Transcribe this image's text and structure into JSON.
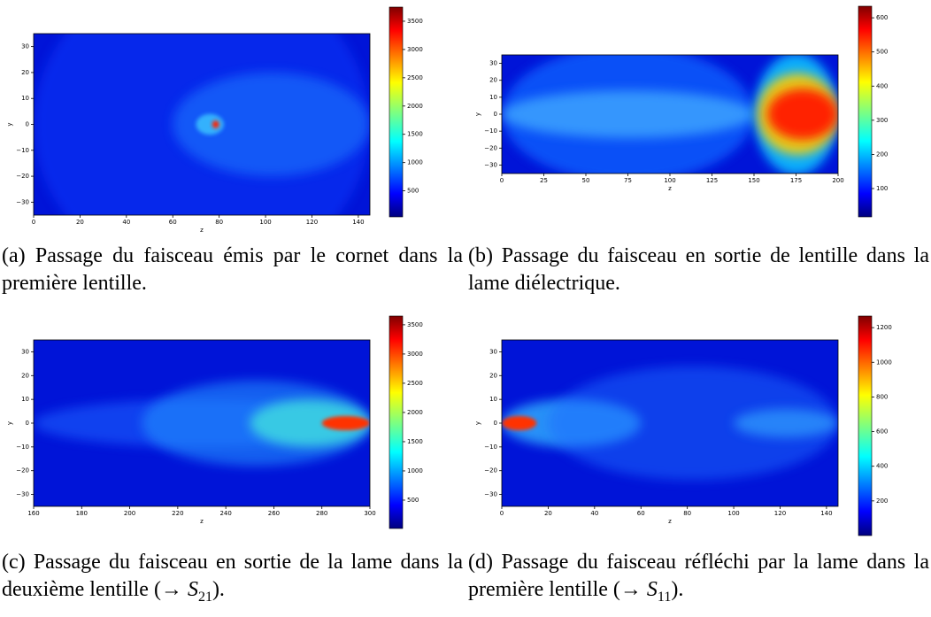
{
  "chart_data": [
    {
      "type": "heatmap",
      "xlabel": "z",
      "ylabel": "y",
      "xlim": [
        0,
        145
      ],
      "xticks": [
        0,
        20,
        40,
        60,
        80,
        100,
        120,
        140
      ],
      "ylim": [
        -35,
        35
      ],
      "yticks": [
        {
          "value": -30,
          "label": "−30"
        },
        {
          "value": -20,
          "label": "−20"
        },
        {
          "value": -10,
          "label": "−10"
        },
        0,
        10,
        20,
        30
      ],
      "colorbar": {
        "lim": [
          40,
          3750
        ],
        "ticks": [
          500,
          1000,
          1500,
          2000,
          2500,
          3000,
          3500
        ]
      },
      "caption": "(a) Passage du faisceau émis par le cornet dans la première lentille."
    },
    {
      "type": "heatmap",
      "xlabel": "z",
      "ylabel": "y",
      "xlim": [
        0,
        200
      ],
      "xticks": [
        0,
        25,
        50,
        75,
        100,
        125,
        150,
        175,
        200
      ],
      "ylim": [
        -35,
        35
      ],
      "yticks": [
        {
          "value": -30,
          "label": "−30"
        },
        {
          "value": -20,
          "label": "−20"
        },
        {
          "value": -10,
          "label": "−10"
        },
        0,
        10,
        20,
        30
      ],
      "colorbar": {
        "lim": [
          17,
          634
        ],
        "ticks": [
          100,
          200,
          300,
          400,
          500,
          600
        ]
      },
      "caption": "(b) Passage du faisceau en sortie de lentille dans la lame diélectrique."
    },
    {
      "type": "heatmap",
      "xlabel": "z",
      "ylabel": "y",
      "xlim": [
        160,
        300
      ],
      "xticks": [
        160,
        180,
        200,
        220,
        240,
        260,
        280,
        300
      ],
      "ylim": [
        -35,
        35
      ],
      "yticks": [
        {
          "value": -30,
          "label": "−30"
        },
        {
          "value": -20,
          "label": "−20"
        },
        {
          "value": -10,
          "label": "−10"
        },
        0,
        10,
        20,
        30
      ],
      "colorbar": {
        "lim": [
          15,
          3650
        ],
        "ticks": [
          500,
          1000,
          1500,
          2000,
          2500,
          3000,
          3500
        ]
      },
      "caption": "(c) Passage du faisceau en sortie de la lame dans la deuxième lentille (→ ",
      "caption_math": "S",
      "caption_sub": "21",
      "caption_end": ")."
    },
    {
      "type": "heatmap",
      "xlabel": "z",
      "ylabel": "y",
      "xlim": [
        0,
        145
      ],
      "xticks": [
        0,
        20,
        40,
        60,
        80,
        100,
        120,
        140
      ],
      "ylim": [
        -35,
        35
      ],
      "yticks": [
        {
          "value": -30,
          "label": "−30"
        },
        {
          "value": -20,
          "label": "−20"
        },
        {
          "value": -10,
          "label": "−10"
        },
        0,
        10,
        20,
        30
      ],
      "colorbar": {
        "lim": [
          0,
          1267
        ],
        "ticks": [
          200,
          400,
          600,
          800,
          1000,
          1200
        ]
      },
      "caption": "(d) Passage du faisceau réfléchi par la lame dans la première lentille (→ ",
      "caption_math": "S",
      "caption_sub": "11",
      "caption_end": ")."
    }
  ]
}
